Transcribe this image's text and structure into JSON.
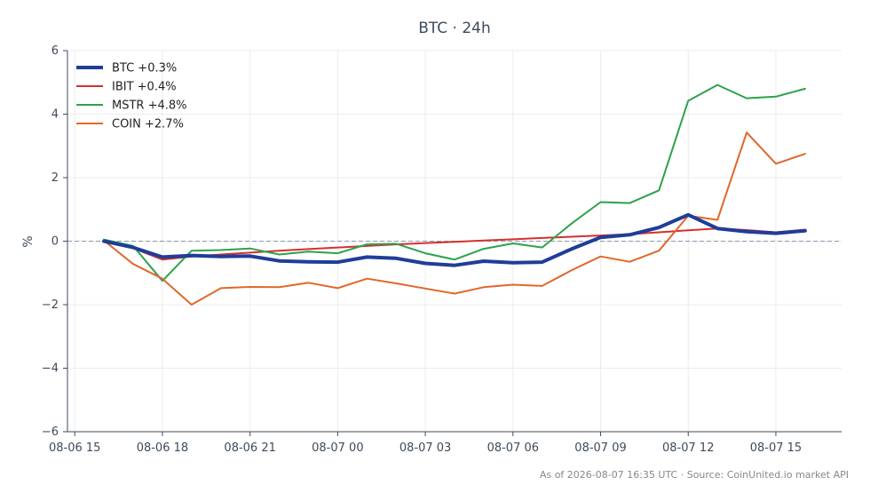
{
  "chart_data": {
    "type": "line",
    "title": "BTC · 24h",
    "ylabel": "%",
    "xlabel": "",
    "ylim": [
      -6,
      6
    ],
    "yticks": [
      -6,
      -4,
      -2,
      0,
      2,
      4,
      6
    ],
    "xlim": [
      "2026-08-06 14:45",
      "2026-08-07 17:15"
    ],
    "xticks": [
      "08-06 15",
      "08-06 18",
      "08-06 21",
      "08-07 00",
      "08-07 03",
      "08-07 06",
      "08-07 09",
      "08-07 12",
      "08-07 15"
    ],
    "x": [
      "2026-08-06 16:00",
      "2026-08-06 17:00",
      "2026-08-06 18:00",
      "2026-08-06 19:00",
      "2026-08-06 20:00",
      "2026-08-06 21:00",
      "2026-08-06 22:00",
      "2026-08-06 23:00",
      "2026-08-07 00:00",
      "2026-08-07 01:00",
      "2026-08-07 02:00",
      "2026-08-07 03:00",
      "2026-08-07 04:00",
      "2026-08-07 05:00",
      "2026-08-07 06:00",
      "2026-08-07 07:00",
      "2026-08-07 08:00",
      "2026-08-07 09:00",
      "2026-08-07 10:00",
      "2026-08-07 11:00",
      "2026-08-07 12:00",
      "2026-08-07 13:00",
      "2026-08-07 14:00",
      "2026-08-07 15:00",
      "2026-08-07 16:00"
    ],
    "grid": true,
    "legend": "top-left",
    "zero_line": true,
    "series": [
      {
        "name": "BTC +0.3%",
        "color": "#1f3d99",
        "width": 4,
        "values": [
          0.0,
          -0.2,
          -0.5,
          -0.45,
          -0.48,
          -0.47,
          -0.62,
          -0.65,
          -0.66,
          -0.5,
          -0.54,
          -0.7,
          -0.76,
          -0.63,
          -0.68,
          -0.66,
          -0.25,
          0.12,
          0.2,
          0.43,
          0.83,
          0.4,
          0.3,
          0.25,
          0.33
        ]
      },
      {
        "name": "IBIT +0.4%",
        "color": "#d62f2f",
        "width": 2,
        "values": [
          0.0,
          -0.22,
          -0.58,
          -0.48,
          -0.42,
          -0.36,
          -0.3,
          -0.25,
          -0.2,
          -0.15,
          -0.1,
          -0.06,
          -0.02,
          0.02,
          0.06,
          0.1,
          0.14,
          0.18,
          0.22,
          0.28,
          0.34,
          0.4,
          0.35,
          0.28,
          0.36
        ]
      },
      {
        "name": "MSTR +4.8%",
        "color": "#2ca24c",
        "width": 2,
        "values": [
          0.05,
          -0.15,
          -1.25,
          -0.3,
          -0.28,
          -0.23,
          -0.42,
          -0.33,
          -0.38,
          -0.1,
          -0.08,
          -0.38,
          -0.58,
          -0.24,
          -0.07,
          -0.2,
          0.55,
          1.23,
          1.2,
          1.6,
          4.42,
          4.92,
          4.5,
          4.55,
          4.8
        ]
      },
      {
        "name": "COIN +2.7%",
        "color": "#e0682a",
        "width": 2,
        "values": [
          0.02,
          -0.72,
          -1.18,
          -2.0,
          -1.48,
          -1.44,
          -1.45,
          -1.31,
          -1.48,
          -1.18,
          -1.33,
          -1.49,
          -1.65,
          -1.45,
          -1.37,
          -1.41,
          -0.92,
          -0.48,
          -0.65,
          -0.3,
          0.8,
          0.67,
          3.42,
          2.44,
          2.75
        ]
      }
    ]
  },
  "footer": "As of 2026-08-07 16:35 UTC · Source: CoinUnited.io market API"
}
